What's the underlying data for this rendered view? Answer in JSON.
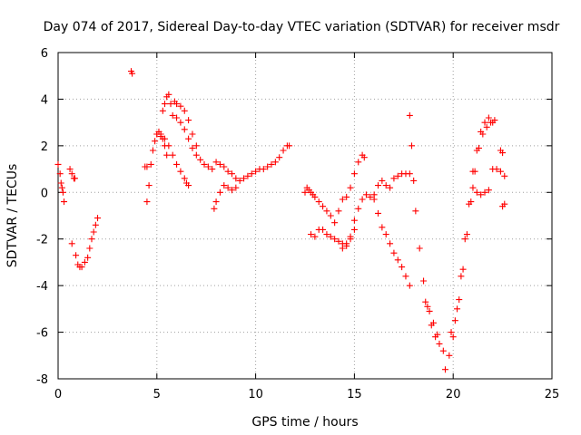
{
  "chart_data": {
    "type": "scatter",
    "title": "Day 074 of 2017, Sidereal Day-to-day VTEC variation (SDTVAR) for receiver msdr",
    "xlabel": "GPS time / hours",
    "ylabel": "SDTVAR / TECUs",
    "xlim": [
      0,
      25
    ],
    "ylim": [
      -8,
      6
    ],
    "xticks": [
      0,
      5,
      10,
      15,
      20,
      25
    ],
    "yticks": [
      -8,
      -6,
      -4,
      -2,
      0,
      2,
      4,
      6
    ],
    "xtick_labels": [
      "0",
      "5",
      "10",
      "15",
      "20",
      "25"
    ],
    "ytick_labels": [
      "-8",
      "-6",
      "-4",
      "-2",
      "0",
      "2",
      "4",
      "6"
    ],
    "grid": true,
    "marker": "plus",
    "color": "#ff0000",
    "series": [
      {
        "name": "s1",
        "x": [
          0.0,
          0.1,
          0.15,
          0.2,
          0.25,
          0.3
        ],
        "y": [
          1.2,
          0.8,
          0.4,
          0.2,
          0.0,
          -0.4
        ]
      },
      {
        "name": "s2",
        "x": [
          0.6,
          0.7,
          0.8,
          0.85
        ],
        "y": [
          1.0,
          0.8,
          0.6,
          0.6
        ]
      },
      {
        "name": "s3",
        "x": [
          0.7,
          0.9,
          1.0,
          1.1,
          1.2,
          1.35,
          1.5,
          1.6,
          1.7,
          1.8,
          1.9,
          2.0
        ],
        "y": [
          -2.2,
          -2.7,
          -3.1,
          -3.2,
          -3.2,
          -3.0,
          -2.8,
          -2.4,
          -2.0,
          -1.7,
          -1.4,
          -1.1
        ]
      },
      {
        "name": "s4",
        "x": [
          3.7,
          3.75
        ],
        "y": [
          5.2,
          5.1
        ]
      },
      {
        "name": "s5",
        "x": [
          4.4,
          4.5
        ],
        "y": [
          1.1,
          1.1
        ]
      },
      {
        "name": "s6",
        "x": [
          4.5,
          4.6,
          4.7,
          4.8,
          4.9,
          5.0,
          5.1,
          5.2,
          5.3,
          5.4,
          5.5
        ],
        "y": [
          -0.4,
          0.3,
          1.2,
          1.8,
          2.2,
          2.5,
          2.6,
          2.5,
          2.3,
          2.0,
          1.6
        ]
      },
      {
        "name": "s7",
        "x": [
          5.0,
          5.2,
          5.4,
          5.6,
          5.8,
          6.0,
          6.2,
          6.4,
          6.5,
          6.6
        ],
        "y": [
          2.5,
          2.4,
          2.3,
          2.0,
          1.6,
          1.2,
          0.9,
          0.6,
          0.4,
          0.3
        ]
      },
      {
        "name": "s8",
        "x": [
          5.3,
          5.4,
          5.5,
          5.6,
          5.7,
          5.8,
          6.0,
          6.2,
          6.4,
          6.6,
          6.8,
          7.0,
          7.2,
          7.4,
          7.6,
          7.8,
          8.0,
          8.2,
          8.4,
          8.6,
          8.8,
          9.0
        ],
        "y": [
          3.5,
          3.8,
          4.1,
          4.2,
          3.8,
          3.3,
          3.2,
          3.0,
          2.7,
          2.3,
          1.9,
          1.6,
          1.4,
          1.2,
          1.1,
          1.0,
          1.3,
          1.2,
          1.1,
          0.9,
          0.8,
          0.6
        ]
      },
      {
        "name": "s9",
        "x": [
          5.9,
          6.0,
          6.2,
          6.4,
          6.6,
          6.8,
          7.0
        ],
        "y": [
          3.9,
          3.8,
          3.7,
          3.5,
          3.1,
          2.5,
          2.0
        ]
      },
      {
        "name": "s10",
        "x": [
          7.9,
          8.0,
          8.2,
          8.4,
          8.6,
          8.8,
          9.0,
          9.2,
          9.4,
          9.6,
          9.8,
          10.0,
          10.2,
          10.4,
          10.6,
          10.8,
          11.0,
          11.2,
          11.4,
          11.6,
          11.7
        ],
        "y": [
          -0.7,
          -0.4,
          0.0,
          0.3,
          0.2,
          0.1,
          0.2,
          0.5,
          0.6,
          0.7,
          0.8,
          0.9,
          1.0,
          1.0,
          1.1,
          1.2,
          1.3,
          1.5,
          1.8,
          2.0,
          2.0
        ]
      },
      {
        "name": "s11",
        "x": [
          12.5,
          12.6,
          12.7,
          12.8,
          12.9,
          13.0,
          13.2,
          13.4,
          13.6,
          13.8,
          14.0,
          14.2,
          14.4,
          14.6,
          14.8,
          15.0,
          15.2,
          15.4,
          15.5
        ],
        "y": [
          0.0,
          0.2,
          0.1,
          0.0,
          -0.1,
          -0.2,
          -0.4,
          -0.6,
          -0.8,
          -1.0,
          -1.3,
          -0.8,
          -0.3,
          -0.2,
          0.2,
          0.8,
          1.3,
          1.6,
          1.5
        ]
      },
      {
        "name": "s12",
        "x": [
          12.8,
          13.0,
          13.2,
          13.4,
          13.6,
          13.8,
          14.0,
          14.2,
          14.4,
          14.6,
          14.8,
          15.0
        ],
        "y": [
          -1.8,
          -1.9,
          -1.6,
          -1.6,
          -1.8,
          -1.9,
          -2.0,
          -2.1,
          -2.2,
          -2.2,
          -1.9,
          -1.6
        ]
      },
      {
        "name": "s13",
        "x": [
          14.4,
          14.6,
          14.8
        ],
        "y": [
          -2.4,
          -2.3,
          -2.0
        ]
      },
      {
        "name": "s14",
        "x": [
          15.0,
          15.2,
          15.4,
          15.6,
          15.8,
          16.0,
          16.2,
          16.4,
          16.6,
          16.8,
          17.0,
          17.2,
          17.4,
          17.6,
          17.8
        ],
        "y": [
          -1.2,
          -0.7,
          -0.3,
          -0.1,
          -0.2,
          -0.1,
          0.3,
          0.5,
          0.3,
          0.2,
          0.6,
          0.7,
          0.8,
          0.8,
          0.8
        ]
      },
      {
        "name": "s15",
        "x": [
          16.0,
          16.2,
          16.4,
          16.6,
          16.8,
          17.0,
          17.2,
          17.4,
          17.6,
          17.8
        ],
        "y": [
          -0.3,
          -0.9,
          -1.5,
          -1.8,
          -2.2,
          -2.6,
          -2.9,
          -3.2,
          -3.6,
          -4.0
        ]
      },
      {
        "name": "s16",
        "x": [
          17.8,
          17.9,
          18.0,
          18.1,
          18.3,
          18.5,
          18.7,
          18.9,
          19.1,
          19.3,
          19.5
        ],
        "y": [
          3.3,
          2.0,
          0.5,
          -0.8,
          -2.4,
          -3.8,
          -4.9,
          -5.7,
          -6.2,
          -6.5,
          -6.8
        ]
      },
      {
        "name": "s17",
        "x": [
          18.6,
          18.8,
          19.0,
          19.2
        ],
        "y": [
          -4.7,
          -5.1,
          -5.6,
          -6.1
        ]
      },
      {
        "name": "s18",
        "x": [
          19.6,
          19.8,
          20.0,
          20.2,
          20.4,
          20.6,
          20.8,
          21.0,
          21.2,
          21.4,
          21.6,
          21.8,
          22.0
        ],
        "y": [
          -7.6,
          -7.0,
          -6.2,
          -5.0,
          -3.6,
          -2.0,
          -0.5,
          0.9,
          1.8,
          2.6,
          3.0,
          3.2,
          3.0
        ]
      },
      {
        "name": "s19",
        "x": [
          19.9,
          20.1,
          20.3,
          20.5,
          20.7,
          20.9,
          21.1,
          21.3,
          21.5,
          21.7,
          21.9,
          22.1
        ],
        "y": [
          -6.0,
          -5.5,
          -4.6,
          -3.3,
          -1.8,
          -0.4,
          0.9,
          1.9,
          2.5,
          2.8,
          3.0,
          3.1
        ]
      },
      {
        "name": "s20",
        "x": [
          21.0,
          21.2,
          21.4,
          21.6,
          21.8,
          22.0,
          22.2,
          22.4
        ],
        "y": [
          0.2,
          0.0,
          -0.1,
          0.0,
          0.1,
          1.0,
          1.0,
          0.9
        ]
      },
      {
        "name": "s21",
        "x": [
          22.4,
          22.5,
          22.6,
          22.6,
          22.5
        ],
        "y": [
          1.8,
          1.7,
          0.7,
          -0.5,
          -0.6
        ]
      }
    ]
  }
}
